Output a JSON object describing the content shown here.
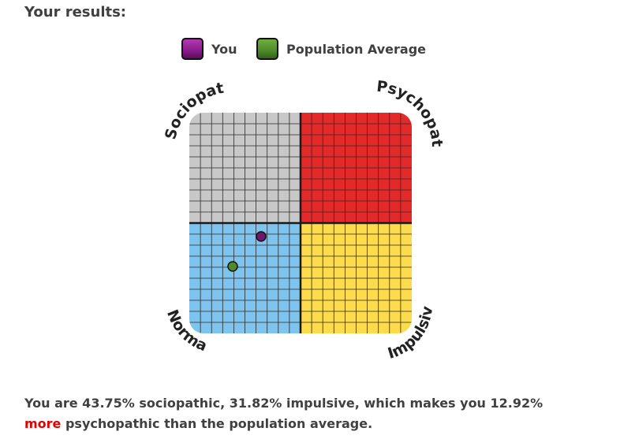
{
  "title": "Your results:",
  "legend": {
    "you_label": "You",
    "you_color": "#8b1a8b",
    "avg_label": "Population Average",
    "avg_color": "#4e8a2a"
  },
  "chart": {
    "labels": {
      "top_left": "Sociopath",
      "top_right": "Psychopath",
      "bottom_left": "Normal",
      "bottom_right": "Impulsive"
    },
    "colors": {
      "top_left": "#c8c8c8",
      "top_right": "#e32a2a",
      "bottom_left": "#7ec4ee",
      "bottom_right": "#fcdb4c"
    },
    "markers": {
      "you": {
        "sociopathic_pct": 43.75,
        "impulsive_pct": 31.82,
        "color": "#6a1a6a"
      },
      "average": {
        "color": "#4e8a2a"
      }
    }
  },
  "summary": {
    "part1": "You are 43.75% sociopathic, 31.82% impulsive, which makes you 12.92% ",
    "highlight": "more",
    "part2": " psychopathic than the population average."
  }
}
